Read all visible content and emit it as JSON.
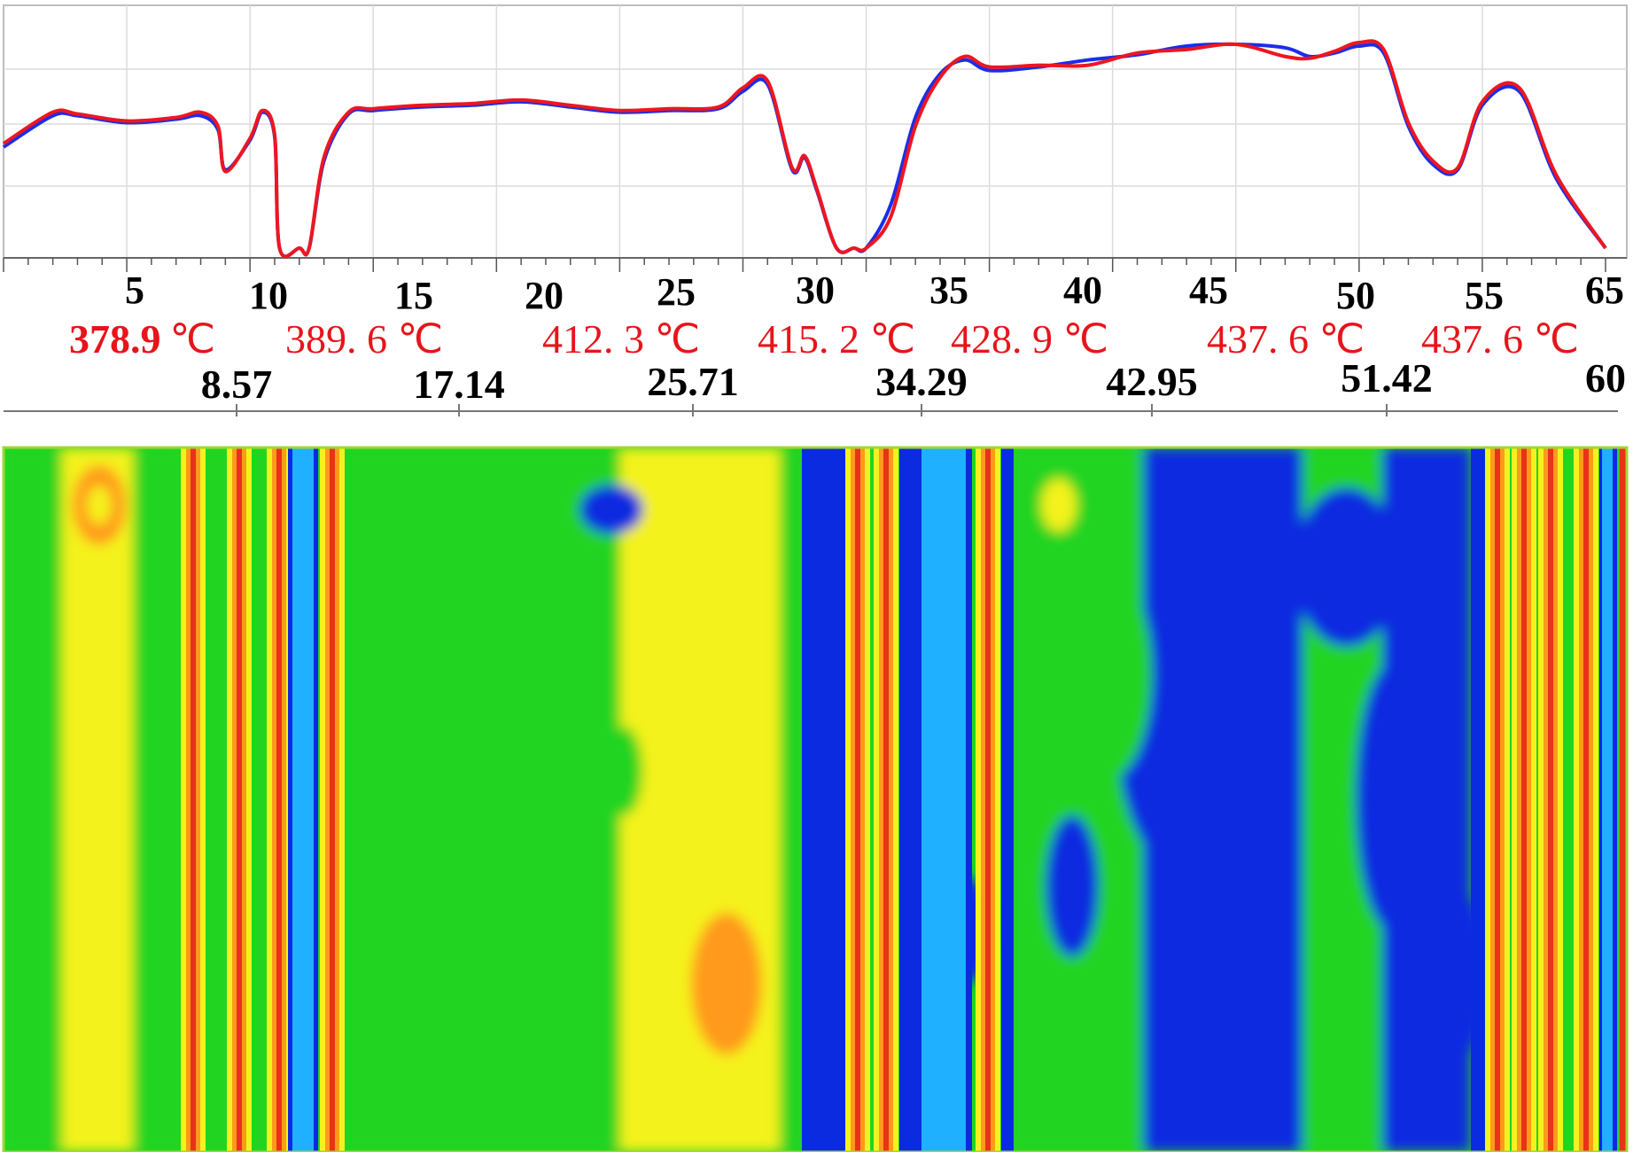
{
  "chart_data": [
    {
      "type": "line",
      "xlim": [
        0,
        65
      ],
      "grid": true,
      "axis_ticks": [
        "5",
        "10",
        "15",
        "20",
        "25",
        "30",
        "35",
        "40",
        "45",
        "50",
        "55",
        "65"
      ],
      "x": [
        0,
        2,
        3,
        5,
        7,
        8,
        8.7,
        9,
        10,
        10.5,
        11,
        11.2,
        12,
        12.4,
        13,
        14,
        15,
        17,
        19,
        21,
        23,
        25,
        27,
        29,
        30,
        31,
        32,
        32.5,
        33,
        33.8,
        34.5,
        35,
        36,
        37,
        38,
        39,
        40,
        42,
        44,
        46,
        48,
        50,
        52,
        53,
        54,
        55,
        56,
        57,
        58,
        59,
        60,
        61.5,
        63,
        65
      ],
      "series": [
        {
          "color": "#1a2ee8",
          "values": [
            58,
            76,
            76,
            72,
            74,
            76,
            68,
            45,
            62,
            78,
            64,
            0,
            0,
            0,
            50,
            77,
            79,
            81,
            82,
            84,
            81,
            78,
            79,
            80,
            90,
            94,
            45,
            52,
            33,
            0,
            0,
            0,
            25,
            75,
            100,
            108,
            102,
            104,
            108,
            111,
            116,
            117,
            115,
            110,
            112,
            116,
            112,
            70,
            48,
            45,
            82,
            90,
            40,
            0
          ]
        },
        {
          "color": "#ee1620",
          "values": [
            60,
            78,
            77,
            73,
            75,
            78,
            70,
            44,
            63,
            79,
            65,
            0,
            0,
            0,
            52,
            78,
            80,
            82,
            83,
            85,
            82,
            79,
            80,
            81,
            92,
            96,
            46,
            53,
            34,
            0,
            0,
            0,
            18,
            70,
            98,
            110,
            104,
            105,
            105,
            112,
            114,
            117,
            110,
            109,
            113,
            118,
            114,
            72,
            50,
            46,
            84,
            92,
            42,
            0
          ]
        }
      ]
    },
    {
      "type": "heatmap",
      "colormap": [
        "#0a2be0",
        "#1fb0ff",
        "#22d422",
        "#f4f21e",
        "#ff9a1a",
        "#e8321a"
      ]
    }
  ],
  "temperatures": {
    "t1": "378.9",
    "t1_unit": "℃",
    "t2": "389. 6 ℃",
    "t3": "412. 3 ℃",
    "t4": "415. 2 ℃",
    "t5": "428. 9 ℃",
    "t6": "437. 6 ℃",
    "t7": "437. 6 ℃"
  },
  "positions": [
    "8.57",
    "17.14",
    "25.71",
    "34.29",
    "42.95",
    "51.42",
    "60"
  ]
}
